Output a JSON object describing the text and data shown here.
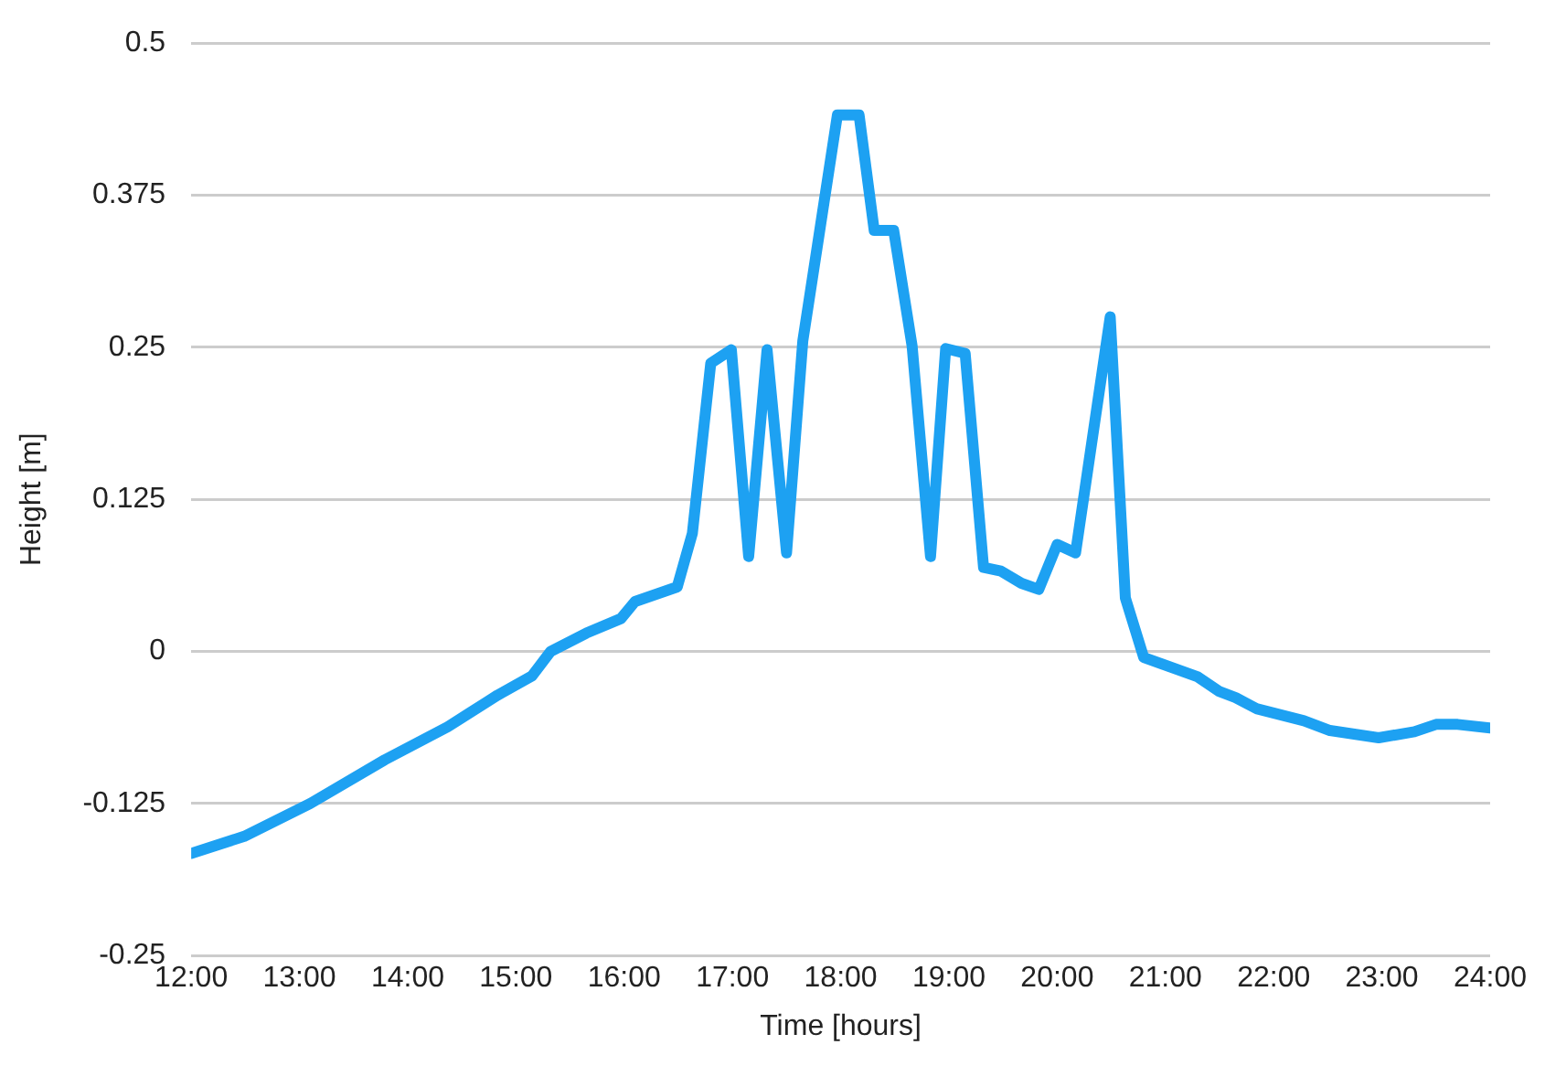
{
  "chart_data": {
    "type": "line",
    "xlabel": "Time [hours]",
    "ylabel": "Height [m]",
    "x": [
      12.0,
      12.49,
      13.1,
      13.79,
      14.37,
      14.83,
      15.15,
      15.32,
      15.65,
      15.97,
      16.1,
      16.49,
      16.63,
      16.8,
      16.99,
      17.15,
      17.32,
      17.5,
      17.65,
      17.97,
      18.17,
      18.31,
      18.49,
      18.66,
      18.83,
      18.97,
      19.15,
      19.32,
      19.48,
      19.67,
      19.83,
      20.0,
      20.17,
      20.49,
      20.63,
      20.8,
      21.3,
      21.5,
      21.65,
      21.84,
      22.28,
      22.52,
      22.97,
      23.3,
      23.5,
      23.7,
      24.0
    ],
    "series": [
      {
        "color": "#1da1f2",
        "values": [
          -0.166,
          -0.152,
          -0.125,
          -0.089,
          -0.062,
          -0.036,
          -0.02,
          0.0,
          0.015,
          0.027,
          0.041,
          0.053,
          0.097,
          0.237,
          0.248,
          0.078,
          0.248,
          0.081,
          0.255,
          0.441,
          0.441,
          0.346,
          0.346,
          0.251,
          0.078,
          0.249,
          0.245,
          0.069,
          0.066,
          0.056,
          0.051,
          0.088,
          0.081,
          0.275,
          0.044,
          -0.005,
          -0.021,
          -0.033,
          -0.038,
          -0.047,
          -0.057,
          -0.065,
          -0.071,
          -0.066,
          -0.06,
          -0.06,
          -0.063
        ]
      }
    ],
    "xlim": [
      12,
      24
    ],
    "xticks": [
      {
        "value": 12,
        "label": "12:00"
      },
      {
        "value": 13,
        "label": "13:00"
      },
      {
        "value": 14,
        "label": "14:00"
      },
      {
        "value": 15,
        "label": "15:00"
      },
      {
        "value": 16,
        "label": "16:00"
      },
      {
        "value": 17,
        "label": "17:00"
      },
      {
        "value": 18,
        "label": "18:00"
      },
      {
        "value": 19,
        "label": "19:00"
      },
      {
        "value": 20,
        "label": "20:00"
      },
      {
        "value": 21,
        "label": "21:00"
      },
      {
        "value": 22,
        "label": "22:00"
      },
      {
        "value": 23,
        "label": "23:00"
      },
      {
        "value": 24,
        "label": "24:00"
      }
    ],
    "ylim": [
      -0.25,
      0.5
    ],
    "yticks": [
      -0.25,
      -0.125,
      0,
      0.125,
      0.25,
      0.375,
      0.5
    ],
    "grid": "y",
    "legend": false,
    "marker": "none",
    "line_style": "solid"
  }
}
